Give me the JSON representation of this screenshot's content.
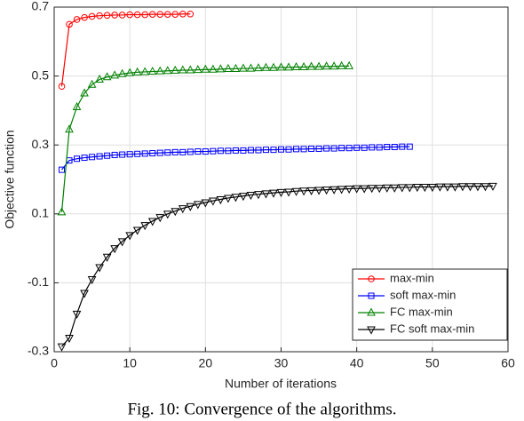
{
  "chart_data": {
    "type": "line",
    "x_label": "Number of iterations",
    "y_label": "Objective function",
    "caption": "Fig. 10: Convergence of the algorithms.",
    "xlim": [
      0,
      60
    ],
    "xticks": [
      0,
      10,
      20,
      30,
      40,
      50,
      60
    ],
    "ylim": [
      -0.3,
      0.7
    ],
    "yticks": [
      -0.3,
      -0.1,
      0.1,
      0.3,
      0.5,
      0.7
    ],
    "grid": true,
    "legend": "lower right",
    "x": [
      1,
      2,
      3,
      4,
      5,
      6,
      7,
      8,
      9,
      10,
      11,
      12,
      13,
      14,
      15,
      16,
      17,
      18,
      19,
      20,
      21,
      22,
      23,
      24,
      25,
      26,
      27,
      28,
      29,
      30,
      31,
      32,
      33,
      34,
      35,
      36,
      37,
      38,
      39,
      40,
      41,
      42,
      43,
      44,
      45,
      46,
      47,
      48,
      49,
      50,
      51,
      52,
      53,
      54,
      55,
      56,
      57,
      58
    ],
    "series": [
      {
        "name": "max-min",
        "color": "#ff0000",
        "marker": "circle",
        "values": [
          0.47,
          0.65,
          0.664,
          0.67,
          0.673,
          0.675,
          0.676,
          0.677,
          0.677,
          0.678,
          0.678,
          0.678,
          0.679,
          0.679,
          0.679,
          0.679,
          0.68,
          0.68,
          null,
          null,
          null,
          null,
          null,
          null,
          null,
          null,
          null,
          null,
          null,
          null,
          null,
          null,
          null,
          null,
          null,
          null,
          null,
          null,
          null,
          null,
          null,
          null,
          null,
          null,
          null,
          null,
          null,
          null,
          null,
          null,
          null,
          null,
          null,
          null,
          null,
          null,
          null,
          null
        ]
      },
      {
        "name": "soft max-min",
        "color": "#0000ff",
        "marker": "square",
        "values": [
          0.228,
          0.255,
          0.26,
          0.263,
          0.265,
          0.267,
          0.269,
          0.271,
          0.272,
          0.273,
          0.274,
          0.275,
          0.276,
          0.277,
          0.278,
          0.279,
          0.279,
          0.28,
          0.281,
          0.281,
          0.282,
          0.283,
          0.283,
          0.284,
          0.284,
          0.285,
          0.285,
          0.286,
          0.286,
          0.287,
          0.287,
          0.288,
          0.288,
          0.289,
          0.289,
          0.29,
          0.29,
          0.291,
          0.291,
          0.292,
          0.292,
          0.293,
          0.293,
          0.294,
          0.294,
          0.295,
          0.295,
          null,
          null,
          null,
          null,
          null,
          null,
          null,
          null,
          null,
          null,
          null
        ]
      },
      {
        "name": "FC max-min",
        "color": "#008000",
        "marker": "triangle-up",
        "values": [
          0.105,
          0.345,
          0.41,
          0.45,
          0.475,
          0.49,
          0.497,
          0.502,
          0.506,
          0.509,
          0.511,
          0.512,
          0.513,
          0.514,
          0.515,
          0.516,
          0.517,
          0.517,
          0.518,
          0.519,
          0.519,
          0.52,
          0.521,
          0.521,
          0.522,
          0.522,
          0.523,
          0.524,
          0.524,
          0.525,
          0.525,
          0.526,
          0.526,
          0.527,
          0.527,
          0.528,
          0.528,
          0.529,
          0.529,
          null,
          null,
          null,
          null,
          null,
          null,
          null,
          null,
          null,
          null,
          null,
          null,
          null,
          null,
          null,
          null,
          null,
          null,
          null
        ]
      },
      {
        "name": "FC soft max-min",
        "color": "#000000",
        "marker": "triangle-down",
        "values": [
          -0.285,
          -0.26,
          -0.19,
          -0.13,
          -0.09,
          -0.055,
          -0.025,
          0.0,
          0.02,
          0.038,
          0.053,
          0.067,
          0.079,
          0.09,
          0.1,
          0.108,
          0.116,
          0.122,
          0.128,
          0.133,
          0.138,
          0.142,
          0.146,
          0.149,
          0.152,
          0.155,
          0.157,
          0.159,
          0.161,
          0.163,
          0.164,
          0.166,
          0.167,
          0.168,
          0.169,
          0.17,
          0.171,
          0.172,
          0.173,
          0.174,
          0.174,
          0.175,
          0.175,
          0.176,
          0.176,
          0.177,
          0.177,
          0.178,
          0.178,
          0.178,
          0.179,
          0.179,
          0.179,
          0.18,
          0.18,
          0.18,
          0.18,
          0.181
        ]
      }
    ]
  }
}
